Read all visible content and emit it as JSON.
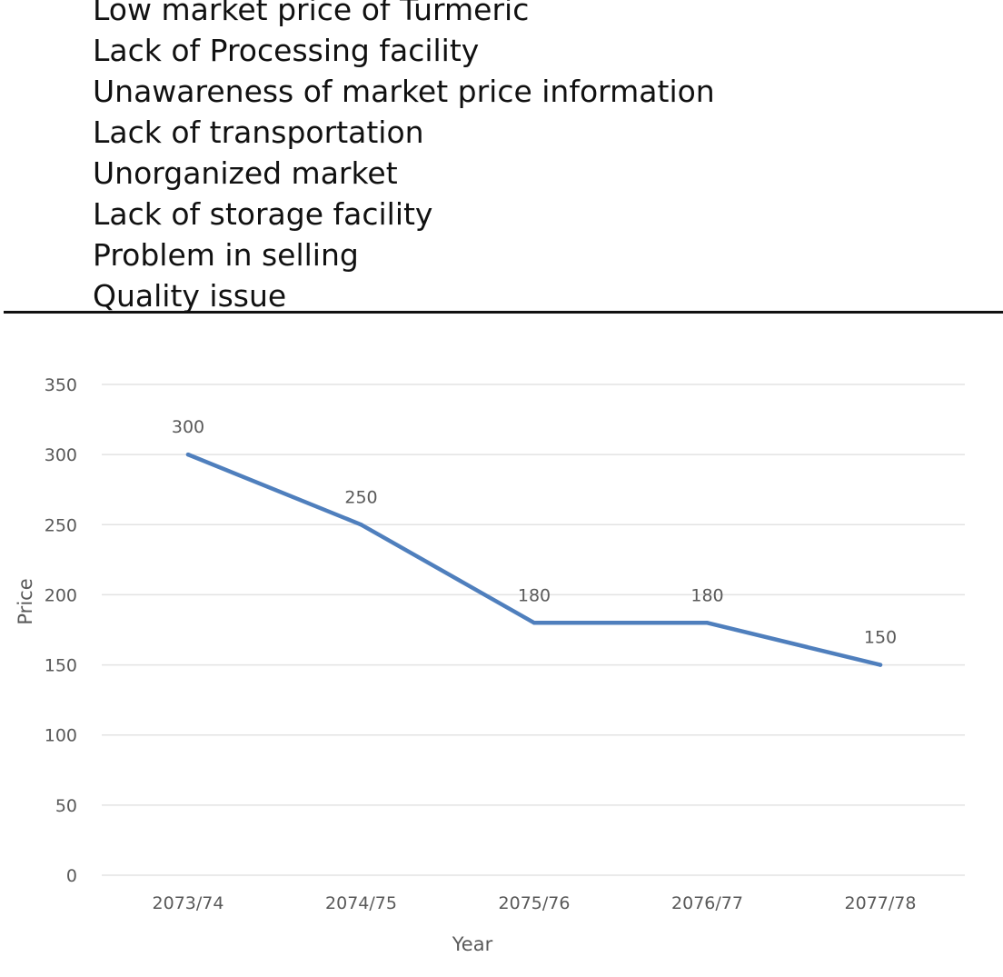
{
  "problems": [
    "Low market price of Turmeric",
    "Lack of Processing facility",
    "Unawareness of market price information",
    "Lack of transportation",
    "Unorganized market",
    "Lack of storage facility",
    "Problem in selling",
    "Quality issue"
  ],
  "chart_data": {
    "type": "line",
    "title": "",
    "xlabel": "Year",
    "ylabel": "Price",
    "categories": [
      "2073/74",
      "2074/75",
      "2075/76",
      "2076/77",
      "2077/78"
    ],
    "series": [
      {
        "values": [
          300,
          250,
          180,
          180,
          150
        ],
        "color": "#4f7fbd"
      }
    ],
    "data_labels": [
      "300",
      "250",
      "180",
      "180",
      "150"
    ],
    "ylim": [
      0,
      350
    ],
    "yticks": [
      0,
      50,
      100,
      150,
      200,
      250,
      300,
      350
    ],
    "ytick_labels": [
      "0",
      "50",
      "100",
      "150",
      "200",
      "250",
      "300",
      "350"
    ],
    "grid": true,
    "legend": "none",
    "colors": {
      "grid": "#e3e3e3",
      "tick_text": "#595959",
      "line": "#4f7fbd"
    }
  }
}
